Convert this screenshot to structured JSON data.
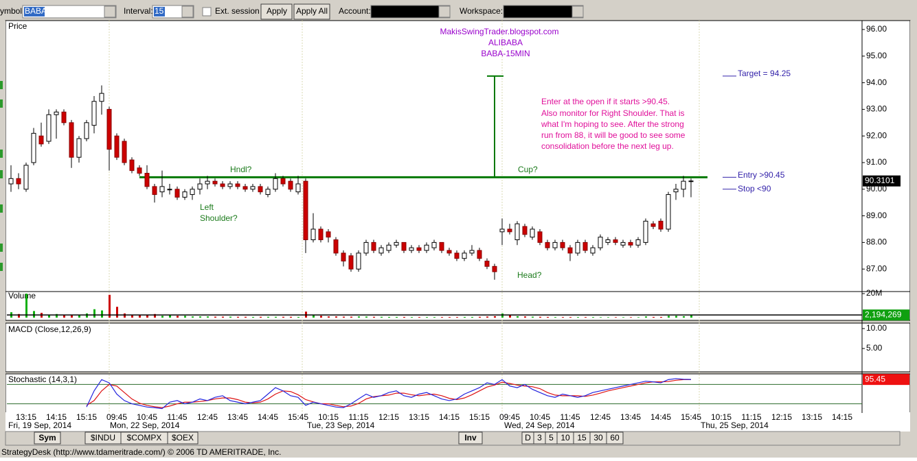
{
  "toolbar": {
    "symbol_label": "ymbol:",
    "symbol": "BABA",
    "interval_label": "Interval:",
    "interval": "15",
    "ext_session": "Ext. session",
    "apply": "Apply",
    "apply_all": "Apply All",
    "account_label": "Account:",
    "workspace_label": "Workspace:"
  },
  "panels": {
    "price": "Price",
    "volume": "Volume",
    "macd": "MACD (Close,12,26,9)",
    "stochastic": "Stochastic (14,3,1)"
  },
  "annotations": {
    "blog": "MakisSwingTrader.blogspot.com",
    "ticker": "ALIBABA",
    "timeframe": "BABA-15MIN",
    "note": [
      "Enter at the open if it starts >90.45.",
      "Also monitor for Right Shoulder. That is",
      "what I'm hoping to see. After the strong",
      "run from 88, it will be good to see some",
      "consolidation before the next leg up."
    ],
    "handle": "Hndl?",
    "cup": "Cup?",
    "left_shoulder": [
      "Left",
      "Shoulder?"
    ],
    "head": "Head?",
    "target": "Target = 94.25",
    "entry": "Entry >90.45",
    "stop": "Stop <90"
  },
  "levels": {
    "entry": 90.45,
    "target": 94.25,
    "stop": 90
  },
  "chart_data": {
    "type": "candlestick",
    "up_color": "#ffffff",
    "down_color": "#cc0000",
    "ylim": [
      86.3,
      96.3
    ],
    "yticks": [
      {
        "value": 96,
        "label": "96.00"
      },
      {
        "value": 95,
        "label": "95.00"
      },
      {
        "value": 94,
        "label": "94.00"
      },
      {
        "value": 93,
        "label": "93.00"
      },
      {
        "value": 92,
        "label": "92.00"
      },
      {
        "value": 91,
        "label": "91.00"
      },
      {
        "value": 90,
        "label": "90.00"
      },
      {
        "value": 89,
        "label": "89.00"
      },
      {
        "value": 88,
        "label": "88.00"
      },
      {
        "value": 87,
        "label": "87.00"
      }
    ],
    "last_price": 90.3101,
    "time_labels": [
      "13:15",
      "14:15",
      "15:15",
      "09:45",
      "10:45",
      "11:45",
      "12:45",
      "13:45",
      "14:45",
      "15:45",
      "10:15",
      "11:15",
      "12:15",
      "13:15",
      "14:15",
      "15:15",
      "09:45",
      "10:45",
      "11:45",
      "12:45",
      "13:45",
      "14:45",
      "15:45",
      "10:15",
      "11:15",
      "12:15",
      "13:15",
      "14:15"
    ],
    "date_labels": [
      "Fri, 19 Sep, 2014",
      "Mon, 22 Sep, 2014",
      "Tue, 23 Sep, 2014",
      "Wed, 24 Sep, 2014",
      "Thu, 25 Sep, 2014"
    ],
    "ohlc": [
      [
        90.2,
        90.9,
        89.9,
        90.4
      ],
      [
        90.4,
        90.6,
        90.0,
        90.2
      ],
      [
        90.0,
        91.0,
        89.9,
        90.9
      ],
      [
        91.0,
        92.3,
        90.9,
        92.1
      ],
      [
        92.0,
        92.5,
        91.6,
        91.7
      ],
      [
        91.8,
        93.0,
        91.7,
        92.8
      ],
      [
        92.8,
        93.0,
        91.9,
        92.9
      ],
      [
        92.9,
        93.0,
        92.4,
        92.5
      ],
      [
        92.5,
        92.6,
        90.8,
        91.2
      ],
      [
        91.2,
        92.0,
        91.0,
        91.9
      ],
      [
        91.9,
        92.6,
        91.8,
        92.5
      ],
      [
        92.4,
        93.5,
        92.1,
        93.3
      ],
      [
        93.3,
        93.9,
        92.8,
        93.6
      ],
      [
        93.0,
        93.1,
        90.7,
        91.5
      ],
      [
        92.0,
        92.1,
        91.1,
        91.2
      ],
      [
        91.8,
        91.9,
        90.9,
        91.0
      ],
      [
        91.1,
        91.2,
        90.6,
        90.7
      ],
      [
        90.8,
        90.9,
        90.5,
        90.6
      ],
      [
        90.6,
        90.9,
        90.0,
        90.1
      ],
      [
        90.1,
        90.2,
        89.5,
        89.8
      ],
      [
        89.9,
        90.7,
        89.7,
        90.1
      ],
      [
        90.0,
        90.2,
        89.8,
        90.0
      ],
      [
        90.0,
        90.1,
        89.6,
        89.7
      ],
      [
        89.7,
        90.0,
        89.6,
        89.9
      ],
      [
        89.8,
        90.1,
        89.6,
        90.0
      ],
      [
        90.0,
        90.4,
        89.8,
        90.2
      ],
      [
        90.2,
        90.5,
        90.0,
        90.3
      ],
      [
        90.3,
        90.4,
        90.1,
        90.2
      ],
      [
        90.2,
        90.3,
        90.0,
        90.1
      ],
      [
        90.1,
        90.3,
        90.0,
        90.2
      ],
      [
        90.2,
        90.3,
        90.0,
        90.1
      ],
      [
        90.1,
        90.2,
        89.9,
        90.0
      ],
      [
        90.0,
        90.2,
        89.9,
        90.1
      ],
      [
        90.1,
        90.2,
        89.8,
        89.9
      ],
      [
        89.8,
        90.1,
        89.7,
        90.0
      ],
      [
        90.0,
        90.6,
        89.9,
        90.4
      ],
      [
        90.4,
        90.5,
        90.1,
        90.2
      ],
      [
        90.3,
        90.4,
        89.9,
        90.0
      ],
      [
        89.9,
        90.5,
        89.8,
        90.2
      ],
      [
        90.3,
        90.4,
        87.6,
        88.1
      ],
      [
        88.1,
        89.1,
        88.0,
        88.5
      ],
      [
        88.5,
        88.6,
        88.0,
        88.1
      ],
      [
        88.4,
        88.5,
        88.0,
        88.2
      ],
      [
        88.1,
        88.2,
        87.5,
        87.6
      ],
      [
        87.6,
        87.7,
        87.1,
        87.3
      ],
      [
        87.5,
        87.6,
        86.9,
        87.0
      ],
      [
        87.0,
        87.7,
        86.9,
        87.6
      ],
      [
        87.6,
        88.1,
        87.5,
        88.0
      ],
      [
        88.0,
        88.1,
        87.6,
        87.7
      ],
      [
        87.6,
        87.9,
        87.5,
        87.8
      ],
      [
        87.7,
        88.0,
        87.6,
        87.9
      ],
      [
        87.9,
        88.1,
        87.8,
        88.0
      ],
      [
        88.0,
        88.0,
        87.6,
        87.7
      ],
      [
        87.7,
        87.9,
        87.6,
        87.8
      ],
      [
        87.8,
        87.9,
        87.6,
        87.7
      ],
      [
        87.7,
        88.0,
        87.6,
        87.9
      ],
      [
        87.8,
        88.1,
        87.7,
        88.0
      ],
      [
        88.0,
        88.0,
        87.6,
        87.7
      ],
      [
        87.7,
        87.8,
        87.5,
        87.6
      ],
      [
        87.6,
        87.7,
        87.3,
        87.4
      ],
      [
        87.4,
        87.7,
        87.3,
        87.6
      ],
      [
        87.6,
        87.9,
        87.5,
        87.7
      ],
      [
        87.7,
        87.8,
        87.3,
        87.4
      ],
      [
        87.3,
        87.4,
        87.0,
        87.1
      ],
      [
        87.1,
        87.2,
        86.6,
        86.9
      ],
      [
        88.4,
        88.9,
        87.9,
        88.5
      ],
      [
        88.5,
        88.7,
        88.3,
        88.4
      ],
      [
        88.1,
        88.8,
        87.9,
        88.7
      ],
      [
        88.6,
        88.7,
        88.2,
        88.3
      ],
      [
        88.2,
        88.6,
        88.1,
        88.5
      ],
      [
        88.4,
        88.5,
        87.9,
        88.0
      ],
      [
        88.0,
        88.1,
        87.7,
        87.8
      ],
      [
        87.8,
        88.1,
        87.7,
        88.0
      ],
      [
        88.0,
        88.1,
        87.7,
        87.8
      ],
      [
        87.8,
        87.9,
        87.3,
        87.6
      ],
      [
        87.6,
        88.1,
        87.5,
        88.0
      ],
      [
        88.0,
        88.1,
        87.6,
        87.7
      ],
      [
        87.6,
        87.9,
        87.5,
        87.8
      ],
      [
        87.8,
        88.3,
        87.7,
        88.2
      ],
      [
        88.0,
        88.2,
        87.9,
        88.1
      ],
      [
        88.1,
        88.2,
        87.9,
        88.0
      ],
      [
        87.9,
        88.1,
        87.8,
        88.0
      ],
      [
        88.0,
        88.1,
        87.8,
        87.9
      ],
      [
        87.9,
        88.2,
        87.8,
        88.1
      ],
      [
        88.0,
        88.9,
        87.9,
        88.8
      ],
      [
        88.7,
        88.8,
        88.5,
        88.6
      ],
      [
        88.8,
        88.9,
        88.4,
        88.5
      ],
      [
        88.5,
        89.9,
        88.4,
        89.8
      ],
      [
        89.9,
        90.2,
        89.6,
        90.0
      ],
      [
        90.0,
        90.5,
        89.7,
        90.3
      ],
      [
        90.3,
        90.4,
        89.7,
        90.31
      ]
    ],
    "volume": {
      "ylim": [
        0,
        20000000
      ],
      "yticks": [
        {
          "value": 20000000,
          "label": "20M"
        }
      ],
      "last": {
        "value": 2194269,
        "label": "2,194,269"
      },
      "values": [
        4500000,
        3000000,
        20000000,
        5500000,
        4000000,
        2500000,
        3000000,
        2000000,
        2500000,
        2500000,
        3500000,
        7000000,
        6000000,
        19000000,
        9000000,
        3500000,
        2500000,
        2000000,
        2000000,
        3000000,
        1500000,
        2500000,
        1500000,
        1500000,
        1000000,
        1000000,
        1000000,
        800000,
        800000,
        800000,
        700000,
        700000,
        600000,
        700000,
        700000,
        700000,
        700000,
        700000,
        600000,
        5000000,
        2500000,
        1500000,
        1000000,
        1000000,
        800000,
        800000,
        1000000,
        900000,
        700000,
        700000,
        600000,
        600000,
        600000,
        500000,
        500000,
        500000,
        500000,
        500000,
        500000,
        500000,
        600000,
        600000,
        700000,
        900000,
        1200000,
        3500000,
        2000000,
        1200000,
        1000000,
        800000,
        700000,
        600000,
        500000,
        500000,
        500000,
        500000,
        500000,
        500000,
        400000,
        400000,
        400000,
        400000,
        400000,
        400000,
        1000000,
        600000,
        600000,
        1500000,
        1500000,
        1200000,
        2194269
      ]
    },
    "macd": {
      "ylim": [
        -0.5,
        11.2
      ],
      "yticks": [
        {
          "value": 10,
          "label": "10.00"
        },
        {
          "value": 5,
          "label": "5.00"
        }
      ]
    },
    "stochastic": {
      "ylim": [
        0,
        100
      ],
      "levels": [
        20,
        80
      ],
      "k_color": "#2222dd",
      "d_color": "#dd1111",
      "k": [
        null,
        null,
        null,
        null,
        null,
        null,
        null,
        null,
        null,
        null,
        10,
        60,
        95,
        85,
        50,
        30,
        20,
        15,
        10,
        8,
        5,
        25,
        30,
        20,
        25,
        35,
        30,
        40,
        45,
        30,
        25,
        20,
        25,
        30,
        50,
        70,
        60,
        45,
        40,
        15,
        25,
        20,
        15,
        10,
        8,
        20,
        35,
        50,
        40,
        45,
        55,
        60,
        45,
        40,
        50,
        55,
        45,
        35,
        30,
        35,
        50,
        60,
        70,
        85,
        80,
        95,
        75,
        70,
        80,
        65,
        55,
        45,
        40,
        50,
        45,
        40,
        45,
        55,
        60,
        65,
        70,
        75,
        80,
        85,
        90,
        88,
        85,
        95,
        98,
        96,
        95.45
      ],
      "d": [
        null,
        null,
        null,
        null,
        null,
        null,
        null,
        null,
        null,
        null,
        15,
        30,
        60,
        80,
        75,
        55,
        35,
        22,
        15,
        11,
        8,
        13,
        20,
        25,
        25,
        27,
        30,
        35,
        38,
        38,
        33,
        25,
        23,
        25,
        35,
        50,
        60,
        58,
        48,
        33,
        26,
        20,
        20,
        15,
        11,
        13,
        21,
        35,
        42,
        45,
        47,
        53,
        53,
        48,
        45,
        48,
        50,
        45,
        37,
        33,
        38,
        48,
        60,
        72,
        78,
        87,
        83,
        78,
        75,
        73,
        67,
        55,
        47,
        45,
        45,
        45,
        43,
        47,
        53,
        60,
        65,
        70,
        75,
        80,
        85,
        88,
        88,
        89,
        93,
        95,
        95
      ]
    }
  },
  "tabs": {
    "sym": "Sym",
    "symbols": [
      "$INDU",
      "$COMPX",
      "$OEX"
    ],
    "inv": "Inv",
    "intervals": [
      "D",
      "3",
      "5",
      "10",
      "15",
      "30",
      "60"
    ]
  },
  "status": "StrategyDesk (http://www.tdameritrade.com/) © 2006 TD AMERITRADE, Inc."
}
